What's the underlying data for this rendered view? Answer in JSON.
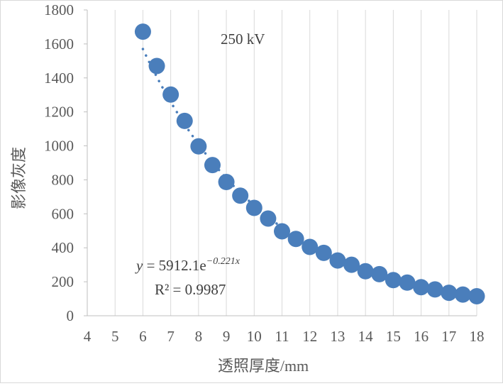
{
  "chart_data": {
    "type": "scatter",
    "title": "",
    "annotation": "250 kV",
    "xlabel": "透照厚度/mm",
    "ylabel": "影像灰度",
    "xlim": [
      4,
      18
    ],
    "ylim": [
      0,
      1800
    ],
    "x_ticks": [
      "4",
      "5",
      "6",
      "7",
      "8",
      "9",
      "10",
      "11",
      "12",
      "13",
      "14",
      "15",
      "16",
      "17",
      "18"
    ],
    "y_ticks": [
      "0",
      "200",
      "400",
      "600",
      "800",
      "1000",
      "1200",
      "1400",
      "1600",
      "1800"
    ],
    "grid": "vertical",
    "marker_color": "#4A7EBB",
    "points": [
      {
        "x": 6.0,
        "y": 1672
      },
      {
        "x": 6.5,
        "y": 1470
      },
      {
        "x": 7.0,
        "y": 1302
      },
      {
        "x": 7.5,
        "y": 1147
      },
      {
        "x": 8.0,
        "y": 997
      },
      {
        "x": 8.5,
        "y": 887
      },
      {
        "x": 9.0,
        "y": 787
      },
      {
        "x": 9.5,
        "y": 707
      },
      {
        "x": 10.0,
        "y": 635
      },
      {
        "x": 10.5,
        "y": 572
      },
      {
        "x": 11.0,
        "y": 497
      },
      {
        "x": 11.5,
        "y": 452
      },
      {
        "x": 12.0,
        "y": 405
      },
      {
        "x": 12.5,
        "y": 370
      },
      {
        "x": 13.0,
        "y": 325
      },
      {
        "x": 13.5,
        "y": 300
      },
      {
        "x": 14.0,
        "y": 262
      },
      {
        "x": 14.5,
        "y": 245
      },
      {
        "x": 15.0,
        "y": 210
      },
      {
        "x": 15.5,
        "y": 195
      },
      {
        "x": 16.0,
        "y": 168
      },
      {
        "x": 16.5,
        "y": 155
      },
      {
        "x": 17.0,
        "y": 135
      },
      {
        "x": 17.5,
        "y": 125
      },
      {
        "x": 18.0,
        "y": 115
      }
    ],
    "trendline": {
      "type": "exponential",
      "a": 5912.1,
      "b": -0.221,
      "x_range": [
        6,
        18
      ],
      "style": "dotted",
      "equation_prefix": "y",
      "equation_mid": " = 5912.1e",
      "equation_exp": "−0.221x",
      "r_squared_label": "R² = 0.9987"
    }
  }
}
